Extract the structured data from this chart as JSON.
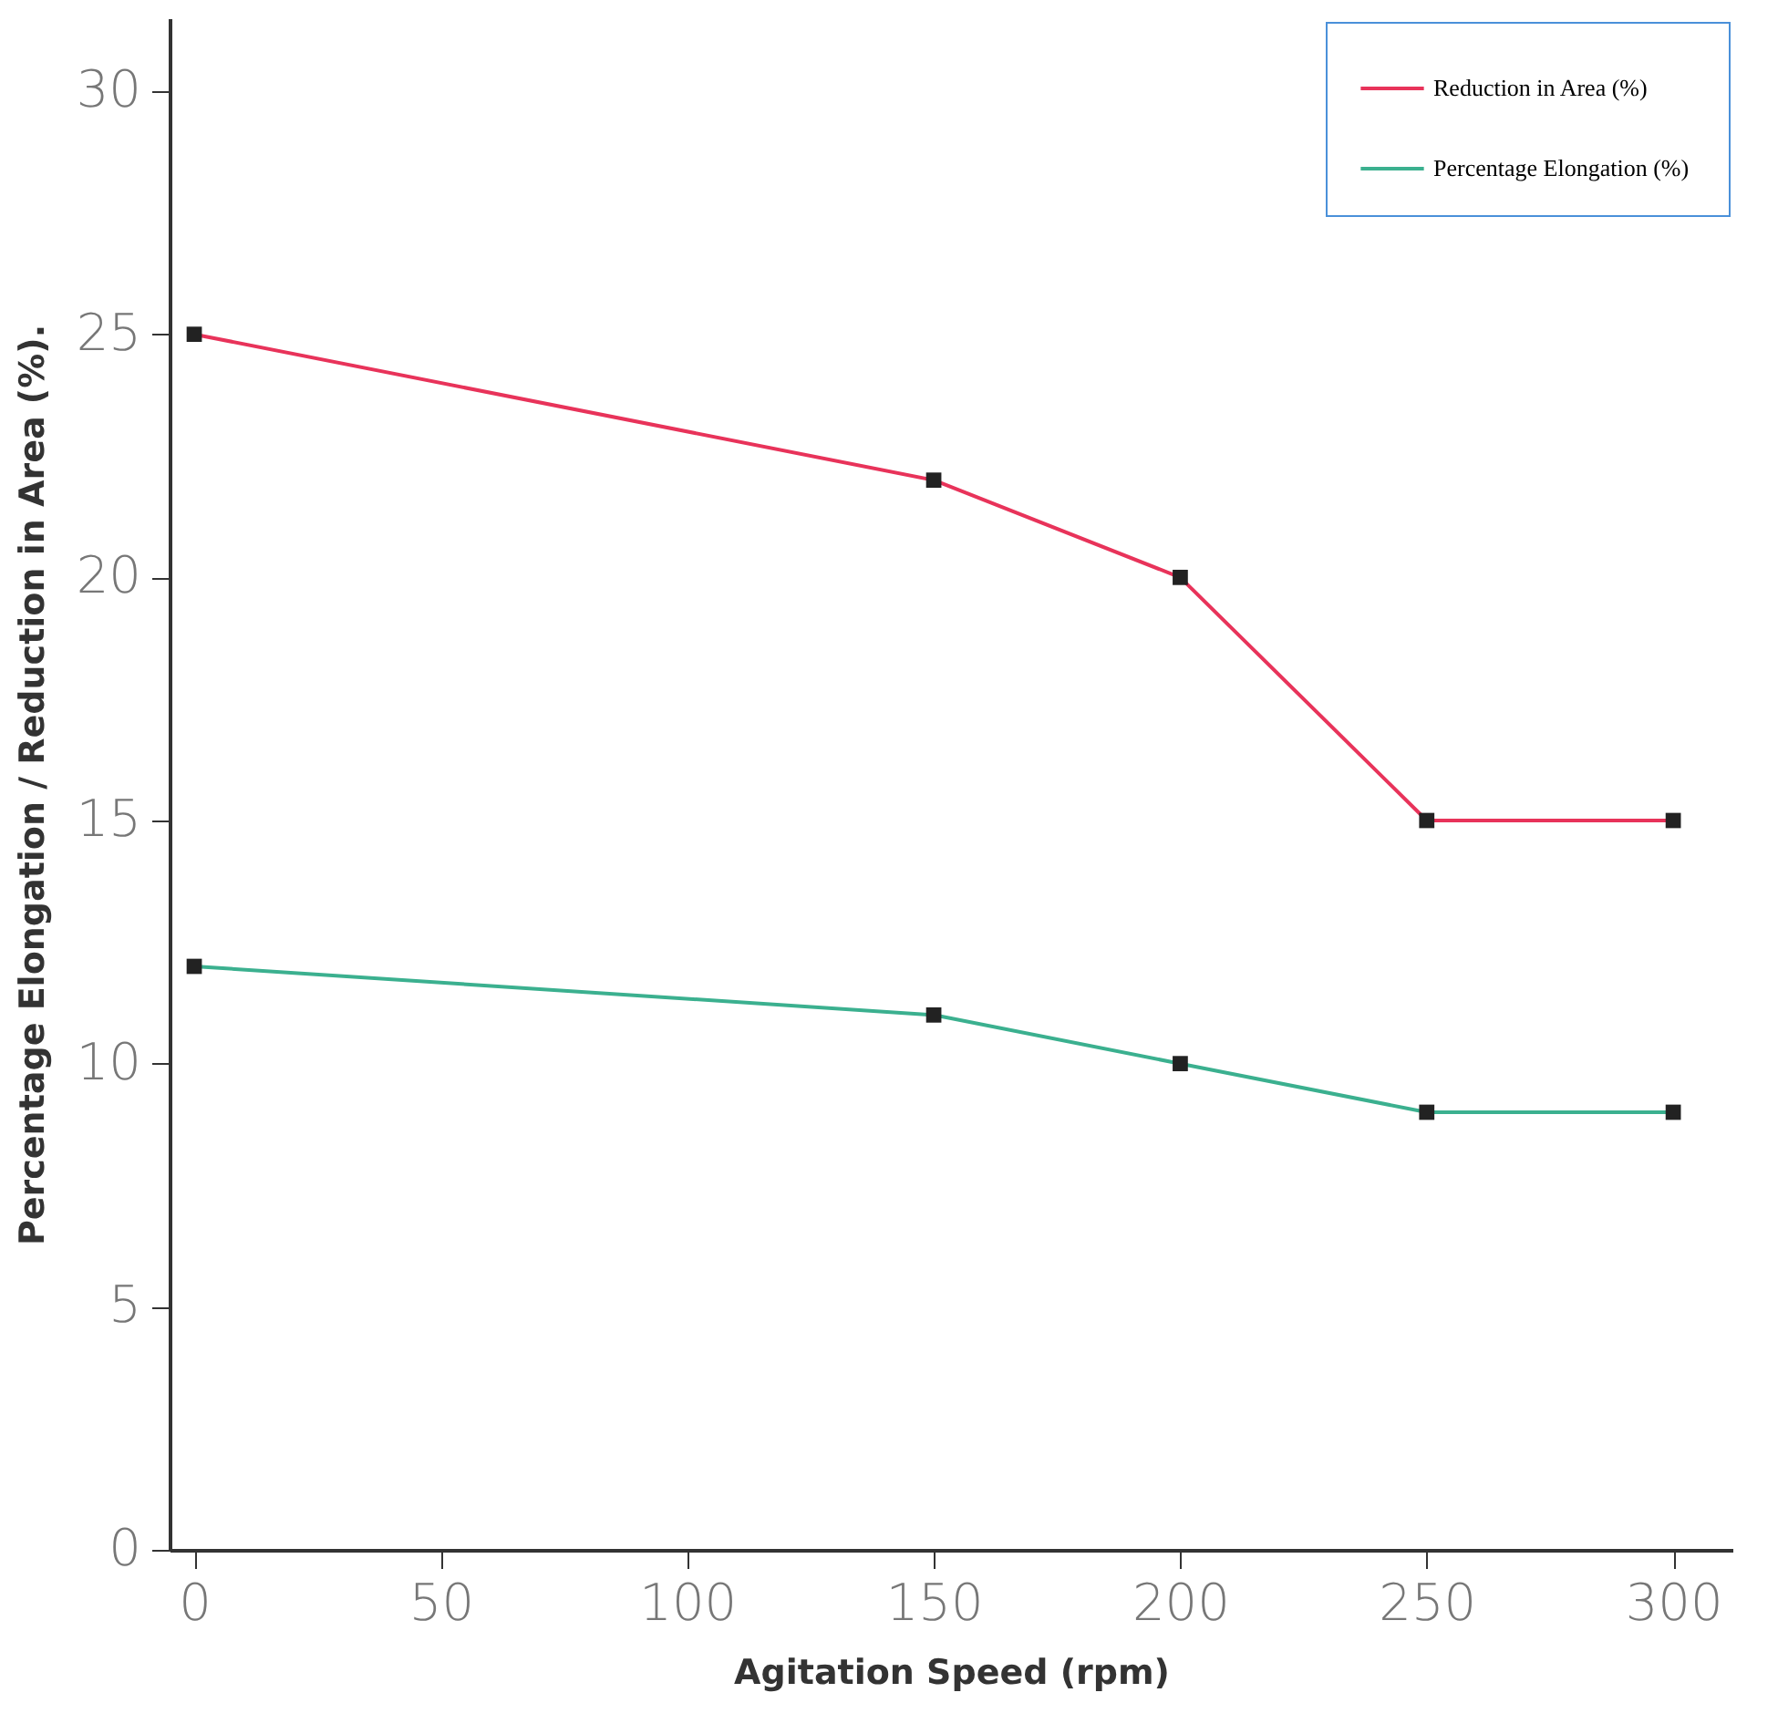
{
  "chart_data": {
    "type": "line",
    "xlabel": "Agitation Speed (rpm)",
    "ylabel": "Percentage Elongation / Reduction in Area (%).",
    "x": [
      0,
      150,
      200,
      250,
      300
    ],
    "series": [
      {
        "name": "Reduction in Area (%)",
        "color": "#e8335a",
        "values": [
          25,
          22,
          20,
          15,
          15
        ]
      },
      {
        "name": "Percentage Elongation  (%)",
        "color": "#3bb08f",
        "values": [
          12,
          11,
          10,
          9,
          9
        ]
      }
    ],
    "xlim": [
      -5,
      312
    ],
    "xticks": [
      0,
      50,
      100,
      150,
      200,
      250,
      300
    ],
    "ylim": [
      0,
      31.5
    ],
    "yticks": [
      0,
      5,
      10,
      15,
      20,
      25,
      30
    ],
    "marker": "square",
    "legend": "top right",
    "grid": false
  }
}
